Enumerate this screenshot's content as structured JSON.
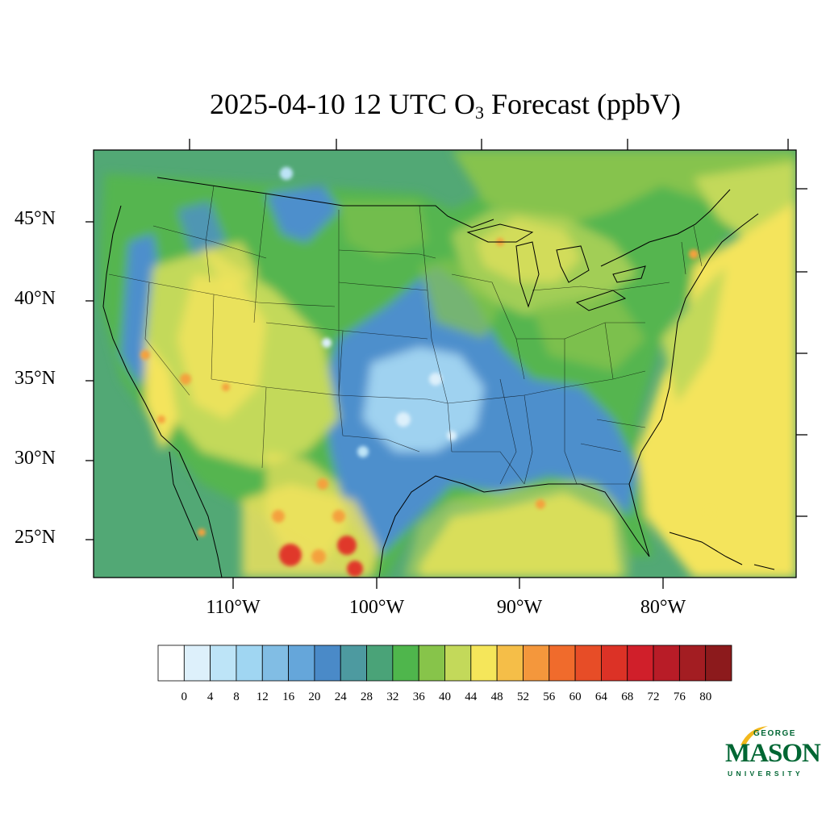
{
  "title": {
    "prefix": "2025-04-10 12 UTC O",
    "subscript": "3",
    "suffix": " Forecast (ppbV)"
  },
  "axes": {
    "lat_labels": [
      "45°N",
      "40°N",
      "35°N",
      "30°N",
      "25°N"
    ],
    "lon_labels": [
      "110°W",
      "100°W",
      "90°W",
      "80°W"
    ]
  },
  "colorbar": {
    "labels": [
      "0",
      "4",
      "8",
      "12",
      "16",
      "20",
      "24",
      "28",
      "32",
      "36",
      "40",
      "44",
      "48",
      "52",
      "56",
      "60",
      "64",
      "68",
      "72",
      "76",
      "80"
    ],
    "colors": [
      "#ffffff",
      "#ddf0fb",
      "#bde4f7",
      "#a0d6f2",
      "#81bde4",
      "#65a6da",
      "#4a8ac8",
      "#4d9aa0",
      "#4aa378",
      "#4fb64c",
      "#87c44a",
      "#c3d95a",
      "#f5e65a",
      "#f5be48",
      "#f4973c",
      "#f06b2c",
      "#e74d27",
      "#dc3226",
      "#d01f2a",
      "#b81c27",
      "#a31d22",
      "#8c1a1c"
    ]
  },
  "map_colors": {
    "ocean": "#52a875",
    "land_green": "#55b550",
    "mid_green": "#86c34d",
    "blue": "#4d8fcc",
    "light_blue": "#9fd2f0",
    "yellow": "#f4e45c",
    "orange": "#f4a13e",
    "red": "#e0392a"
  },
  "logo": {
    "line1": "GEORGE",
    "line2": "MASON",
    "line3": "UNIVERSITY",
    "accent": "#f2b81c",
    "green": "#006633"
  }
}
